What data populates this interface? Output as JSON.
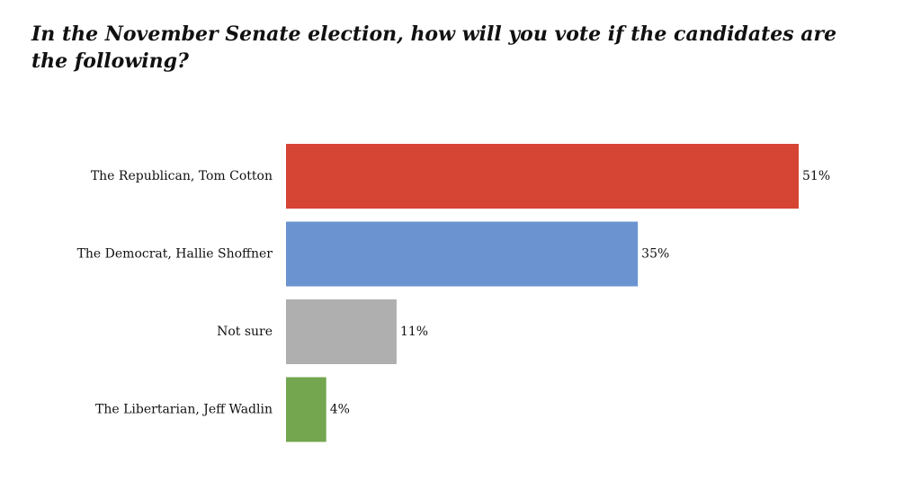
{
  "chart_data": {
    "type": "bar",
    "orientation": "horizontal",
    "title": "In the November Senate election, how will you vote if the candidates are the following?",
    "categories": [
      "The Republican, Tom Cotton",
      "The Democrat, Hallie Shoffner",
      "Not sure",
      "The Libertarian, Jeff Wadlin"
    ],
    "values": [
      51,
      35,
      11,
      4
    ],
    "value_labels": [
      "51%",
      "35%",
      "11%",
      "4%"
    ],
    "unit": "%",
    "colors": [
      "#d64434",
      "#6b93cf",
      "#afafaf",
      "#73a64f"
    ],
    "xlim": [
      0,
      51
    ],
    "grid": false,
    "legend": "none"
  }
}
